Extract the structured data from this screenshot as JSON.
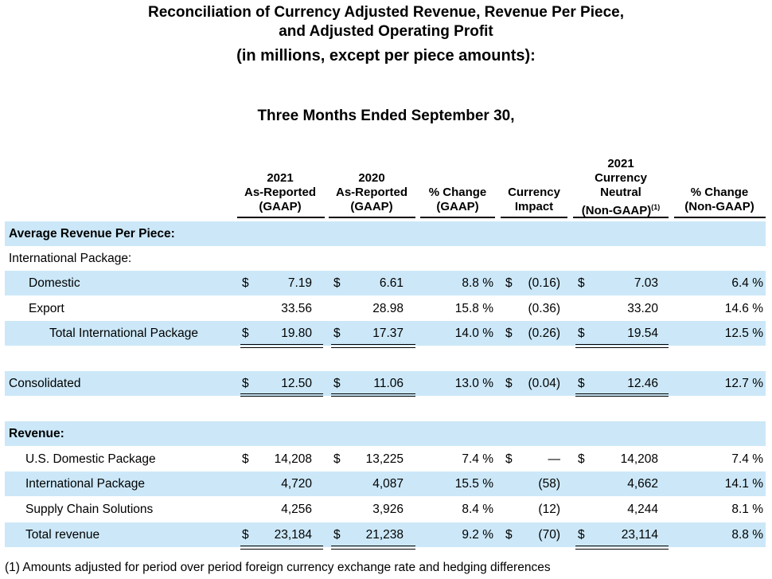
{
  "title": {
    "line1": "Reconciliation of Currency Adjusted Revenue, Revenue Per Piece,",
    "line2": "and Adjusted Operating Profit",
    "line3": "(in millions, except per piece amounts):"
  },
  "period": "Three Months Ended September 30,",
  "columns": [
    {
      "lines": [
        "2021",
        "As-Reported",
        "(GAAP)"
      ]
    },
    {
      "lines": [
        "2020",
        "As-Reported",
        "(GAAP)"
      ]
    },
    {
      "lines": [
        "% Change",
        "(GAAP)"
      ]
    },
    {
      "lines": [
        "Currency",
        "Impact"
      ]
    },
    {
      "lines": [
        "2021",
        "Currency",
        "Neutral",
        "(Non-GAAP)"
      ],
      "footnote_ref": "(1)"
    },
    {
      "lines": [
        "% Change",
        "(Non-GAAP)"
      ]
    }
  ],
  "rows": [
    {
      "label": "Average Revenue Per Piece:",
      "style": "section"
    },
    {
      "label": "International Package:",
      "style": "plain"
    },
    {
      "label": "Domestic",
      "style": "ind1",
      "d1": "$",
      "v2021": "7.19",
      "d2": "$",
      "v2020": "6.61",
      "pct": "8.8 %",
      "d3": "$",
      "cur": "(0.16)",
      "d4": "$",
      "neutral": "7.03",
      "pct_ng": "6.4 %"
    },
    {
      "label": "Export",
      "style": "ind1",
      "d1": "",
      "v2021": "33.56",
      "d2": "",
      "v2020": "28.98",
      "pct": "15.8 %",
      "d3": "",
      "cur": "(0.36)",
      "d4": "",
      "neutral": "33.20",
      "pct_ng": "14.6 %"
    },
    {
      "label": "Total International Package",
      "style": "ind2",
      "d1": "$",
      "v2021": "19.80",
      "d2": "$",
      "v2020": "17.37",
      "pct": "14.0 %",
      "d3": "$",
      "cur": "(0.26)",
      "d4": "$",
      "neutral": "19.54",
      "pct_ng": "12.5 %"
    },
    {
      "label": "",
      "style": "blank"
    },
    {
      "label": "Consolidated",
      "style": "plain",
      "d1": "$",
      "v2021": "12.50",
      "d2": "$",
      "v2020": "11.06",
      "pct": "13.0 %",
      "d3": "$",
      "cur": "(0.04)",
      "d4": "$",
      "neutral": "12.46",
      "pct_ng": "12.7 %"
    },
    {
      "label": "",
      "style": "blank"
    },
    {
      "label": "Revenue:",
      "style": "section"
    },
    {
      "label": "U.S. Domestic Package",
      "style": "ind1b",
      "d1": "$",
      "v2021": "14,208",
      "d2": "$",
      "v2020": "13,225",
      "pct": "7.4 %",
      "d3": "$",
      "cur": "—",
      "d4": "$",
      "neutral": "14,208",
      "pct_ng": "7.4 %"
    },
    {
      "label": "International Package",
      "style": "ind1b",
      "d1": "",
      "v2021": "4,720",
      "d2": "",
      "v2020": "4,087",
      "pct": "15.5 %",
      "d3": "",
      "cur": "(58)",
      "d4": "",
      "neutral": "4,662",
      "pct_ng": "14.1 %"
    },
    {
      "label": "Supply Chain Solutions",
      "style": "ind1b",
      "d1": "",
      "v2021": "4,256",
      "d2": "",
      "v2020": "3,926",
      "pct": "8.4 %",
      "d3": "",
      "cur": "(12)",
      "d4": "",
      "neutral": "4,244",
      "pct_ng": "8.1 %"
    },
    {
      "label": "Total revenue",
      "style": "ind1b",
      "d1": "$",
      "v2021": "23,184",
      "d2": "$",
      "v2020": "21,238",
      "pct": "9.2 %",
      "d3": "$",
      "cur": "(70)",
      "d4": "$",
      "neutral": "23,114",
      "pct_ng": "8.8 %"
    }
  ],
  "footnote": "(1) Amounts adjusted for period over period foreign currency exchange rate and hedging differences"
}
